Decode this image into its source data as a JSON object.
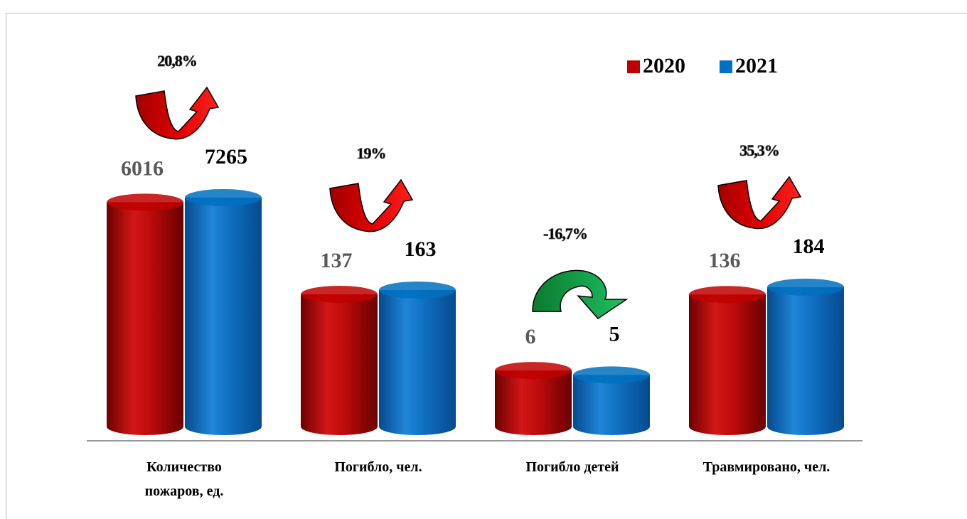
{
  "chart_data": {
    "type": "bar",
    "log_scale": true,
    "ylim": [
      0.6,
      10000
    ],
    "categories": [
      "Количество пожаров, ед.",
      "Погибло, чел.",
      "Погибло детей",
      "Травмировано, чел."
    ],
    "series": [
      {
        "name": "2020",
        "color": "#c00000",
        "values": [
          6016,
          137,
          6,
          136
        ]
      },
      {
        "name": "2021",
        "color": "#0070c0",
        "values": [
          7265,
          163,
          5,
          184
        ]
      }
    ],
    "change_labels": [
      "20,8%",
      "19%",
      "-16,7%",
      "35,3%"
    ],
    "legend": "top-right"
  }
}
